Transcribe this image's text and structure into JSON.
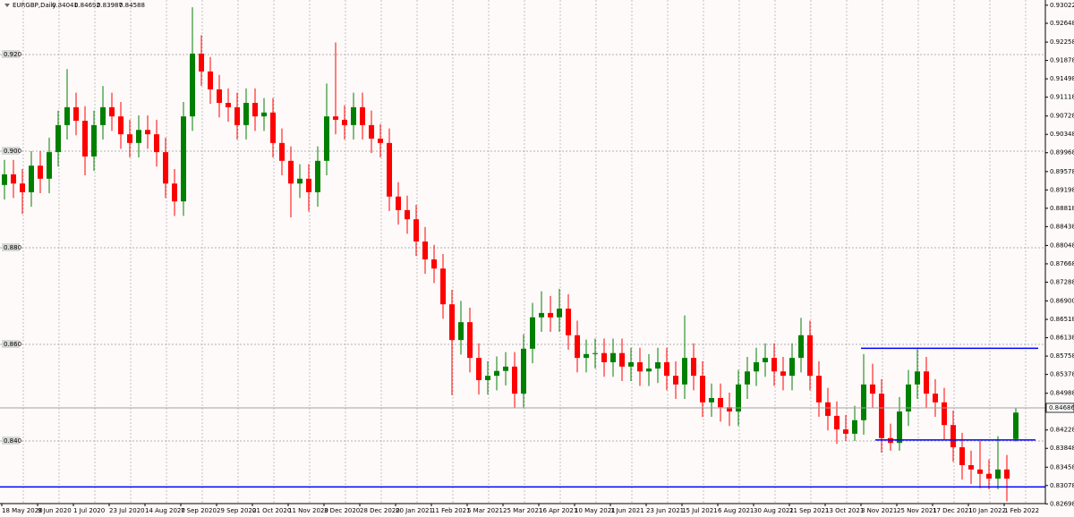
{
  "chart_data": {
    "type": "candlestick",
    "title": "EURGBP,Daily",
    "categories": [
      "18 May 2020",
      null,
      null,
      null,
      "9 Jun 2020",
      null,
      null,
      null,
      "1 Jul 2020",
      null,
      null,
      null,
      "23 Jul 2020",
      null,
      null,
      null,
      "14 Aug 2020",
      null,
      null,
      null,
      "7 Sep 2020",
      null,
      null,
      null,
      "29 Sep 2020",
      null,
      null,
      null,
      "21 Oct 2020",
      null,
      null,
      null,
      "11 Nov 2020",
      null,
      null,
      null,
      "3 Dec 2020",
      null,
      null,
      null,
      "28 Dec 2020",
      null,
      null,
      null,
      "20 Jan 2021",
      null,
      null,
      null,
      "11 Feb 2021",
      null,
      null,
      null,
      "5 Mar 2021",
      null,
      null,
      null,
      "25 Mar 2021",
      null,
      null,
      null,
      "16 Apr 2021",
      null,
      null,
      null,
      "10 May 2021",
      null,
      null,
      null,
      "1 Jun 2021",
      null,
      null,
      null,
      "23 Jun 2021",
      null,
      null,
      null,
      "15 Jul 2021",
      null,
      null,
      null,
      "6 Aug 2021",
      null,
      null,
      null,
      "30 Aug 2021",
      null,
      null,
      null,
      "21 Sep 2021",
      null,
      null,
      null,
      "13 Oct 2021",
      null,
      null,
      null,
      "3 Nov 2021",
      null,
      null,
      null,
      "25 Nov 2021",
      null,
      null,
      null,
      "17 Dec 2021",
      null,
      null,
      null,
      "10 Jan 2022",
      null,
      null,
      null,
      "1 Feb 2022",
      null
    ],
    "open": [
      0.893,
      0.8952,
      0.8933,
      0.8915,
      0.897,
      0.8943,
      0.8998,
      0.9054,
      0.9091,
      0.9063,
      0.8989,
      0.9054,
      0.9091,
      0.9072,
      0.9035,
      0.9017,
      0.9044,
      0.9035,
      0.8998,
      0.8933,
      0.8896,
      0.9072,
      0.9202,
      0.9165,
      0.9128,
      0.91,
      0.9091,
      0.9054,
      0.91,
      0.9072,
      0.908,
      0.9017,
      0.898,
      0.8933,
      0.8943,
      0.8915,
      0.898,
      0.9072,
      0.9065,
      0.9054,
      0.9091,
      0.9054,
      0.9026,
      0.9017,
      0.8906,
      0.8878,
      0.8859,
      0.8813,
      0.8776,
      0.8757,
      0.8683,
      0.8609,
      0.8646,
      0.8572,
      0.8526,
      0.8535,
      0.8545,
      0.8554,
      0.8498,
      0.8591,
      0.8656,
      0.8665,
      0.8656,
      0.8674,
      0.8619,
      0.8572,
      0.858,
      0.8582,
      0.8563,
      0.8582,
      0.8554,
      0.8563,
      0.8544,
      0.855,
      0.8563,
      0.8535,
      0.8517,
      0.8572,
      0.8535,
      0.848,
      0.8489,
      0.847,
      0.8461,
      0.8517,
      0.8544,
      0.8563,
      0.8572,
      0.8544,
      0.8535,
      0.8572,
      0.8619,
      0.8535,
      0.848,
      0.8452,
      0.8424,
      0.8415,
      0.8443,
      0.8517,
      0.8498,
      0.8406,
      0.8396,
      0.8461,
      0.8517,
      0.8544,
      0.8498,
      0.848,
      0.8433,
      0.8387,
      0.835,
      0.8341,
      0.8332,
      0.8322,
      0.8341,
      0.84041
    ],
    "high": [
      0.8982,
      0.8982,
      0.8963,
      0.9,
      0.9,
      0.9028,
      0.9084,
      0.917,
      0.9121,
      0.9093,
      0.9084,
      0.9135,
      0.9121,
      0.9102,
      0.9065,
      0.9074,
      0.9074,
      0.9065,
      0.9028,
      0.8963,
      0.9102,
      0.9298,
      0.924,
      0.9195,
      0.9158,
      0.913,
      0.9121,
      0.913,
      0.913,
      0.911,
      0.911,
      0.9047,
      0.901,
      0.8973,
      0.8973,
      0.901,
      0.914,
      0.9225,
      0.9095,
      0.9121,
      0.9121,
      0.9084,
      0.9056,
      0.9047,
      0.8936,
      0.8908,
      0.8889,
      0.8843,
      0.8806,
      0.8787,
      0.8713,
      0.869,
      0.8676,
      0.8602,
      0.8565,
      0.8575,
      0.8584,
      0.8584,
      0.8621,
      0.8686,
      0.871,
      0.87,
      0.8715,
      0.8704,
      0.8649,
      0.861,
      0.8612,
      0.8612,
      0.8612,
      0.8612,
      0.8593,
      0.8593,
      0.858,
      0.8593,
      0.8593,
      0.8565,
      0.866,
      0.8602,
      0.8565,
      0.8519,
      0.8519,
      0.85,
      0.8547,
      0.8574,
      0.8593,
      0.8602,
      0.8602,
      0.8574,
      0.8602,
      0.8655,
      0.8649,
      0.8565,
      0.851,
      0.8482,
      0.8454,
      0.8473,
      0.858,
      0.856,
      0.8528,
      0.8436,
      0.8491,
      0.8547,
      0.859,
      0.8574,
      0.8528,
      0.851,
      0.8463,
      0.8417,
      0.838,
      0.84,
      0.8362,
      0.841,
      0.8371,
      0.84692
    ],
    "low": [
      0.89,
      0.8903,
      0.887,
      0.8885,
      0.8913,
      0.8913,
      0.8968,
      0.9024,
      0.9033,
      0.895,
      0.8959,
      0.9024,
      0.9042,
      0.9005,
      0.8987,
      0.8987,
      0.9005,
      0.8968,
      0.8903,
      0.8866,
      0.8866,
      0.9042,
      0.9135,
      0.9098,
      0.907,
      0.9061,
      0.9024,
      0.9024,
      0.9042,
      0.9042,
      0.8987,
      0.895,
      0.8863,
      0.8903,
      0.8875,
      0.8885,
      0.895,
      0.9035,
      0.9024,
      0.9024,
      0.9024,
      0.8996,
      0.8987,
      0.8876,
      0.8848,
      0.8829,
      0.8783,
      0.8746,
      0.8727,
      0.8653,
      0.8495,
      0.8579,
      0.8542,
      0.8496,
      0.8496,
      0.8505,
      0.8515,
      0.8468,
      0.8468,
      0.8561,
      0.8626,
      0.8626,
      0.8626,
      0.8589,
      0.8542,
      0.8542,
      0.855,
      0.8533,
      0.8533,
      0.8524,
      0.8524,
      0.8514,
      0.8514,
      0.852,
      0.8505,
      0.8487,
      0.8487,
      0.8505,
      0.845,
      0.845,
      0.844,
      0.8431,
      0.8431,
      0.8487,
      0.8514,
      0.8533,
      0.8514,
      0.8505,
      0.8505,
      0.8542,
      0.8505,
      0.845,
      0.8422,
      0.8394,
      0.84,
      0.84,
      0.8413,
      0.8468,
      0.8376,
      0.838,
      0.838,
      0.8431,
      0.8487,
      0.8468,
      0.845,
      0.8403,
      0.8357,
      0.832,
      0.8311,
      0.8302,
      0.83,
      0.83,
      0.8275,
      0.83987
    ],
    "close": [
      0.8952,
      0.8933,
      0.8915,
      0.897,
      0.8943,
      0.8998,
      0.9054,
      0.9091,
      0.9063,
      0.8989,
      0.9054,
      0.9091,
      0.9072,
      0.9035,
      0.9017,
      0.9044,
      0.9035,
      0.8998,
      0.8933,
      0.8896,
      0.9072,
      0.9202,
      0.9165,
      0.9128,
      0.91,
      0.9091,
      0.9054,
      0.91,
      0.9072,
      0.908,
      0.9017,
      0.898,
      0.8933,
      0.8943,
      0.8915,
      0.898,
      0.9072,
      0.9065,
      0.9054,
      0.9091,
      0.9054,
      0.9026,
      0.9017,
      0.8906,
      0.8878,
      0.8859,
      0.8813,
      0.8776,
      0.8757,
      0.8683,
      0.8609,
      0.8646,
      0.8572,
      0.8526,
      0.8535,
      0.8545,
      0.8554,
      0.8498,
      0.8591,
      0.8656,
      0.8665,
      0.8656,
      0.8674,
      0.8619,
      0.8572,
      0.858,
      0.8582,
      0.8563,
      0.8582,
      0.8554,
      0.8563,
      0.8544,
      0.855,
      0.8563,
      0.8535,
      0.8517,
      0.8572,
      0.8535,
      0.848,
      0.8489,
      0.847,
      0.8461,
      0.8517,
      0.8544,
      0.8563,
      0.8572,
      0.8544,
      0.8535,
      0.8572,
      0.8619,
      0.8535,
      0.848,
      0.8452,
      0.8424,
      0.8415,
      0.8443,
      0.8517,
      0.8498,
      0.8406,
      0.8396,
      0.8461,
      0.8517,
      0.8544,
      0.8498,
      0.848,
      0.8433,
      0.8387,
      0.835,
      0.8341,
      0.8332,
      0.8322,
      0.8341,
      0.8322,
      0.84588
    ],
    "up_color": "#008000",
    "down_color": "#ff0000",
    "ylim": [
      0.82704,
      0.9313
    ],
    "yticks": [
      0.93022,
      0.92648,
      0.92258,
      0.91878,
      0.91498,
      0.91118,
      0.90728,
      0.90348,
      0.89968,
      0.89578,
      0.89198,
      0.88818,
      0.88438,
      0.88048,
      0.87668,
      0.87288,
      {
        "value": 0.869,
        "label": "0.86900"
      },
      0.86518,
      0.86138,
      0.85758,
      0.85378,
      0.84988,
      0.84228,
      0.83848,
      0.83458,
      0.83078,
      0.82698
    ],
    "grid_levels": [
      {
        "value": 0.92,
        "label": "0.920"
      },
      {
        "value": 0.9,
        "label": "0.900"
      },
      {
        "value": 0.88,
        "label": "0.880"
      },
      {
        "value": 0.86,
        "label": "0.860"
      },
      {
        "value": 0.84,
        "label": "0.840"
      }
    ],
    "grid": true,
    "levels": [
      0.8592,
      0.8402,
      0.8305
    ],
    "level_color": "#0000ff",
    "last_price": 0.84686
  }
}
